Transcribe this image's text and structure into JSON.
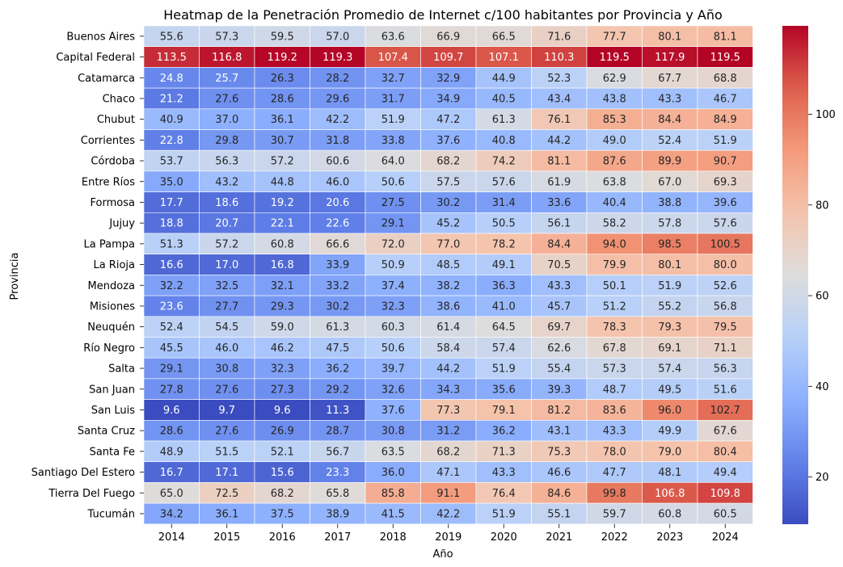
{
  "chart_data": {
    "type": "heatmap",
    "title": "Heatmap de la Penetración Promedio de Internet c/100 habitantes por Provincia y Año",
    "xlabel": "Año",
    "ylabel": "Provincia",
    "colormap": "coolwarm",
    "vmin": 9.6,
    "vmax": 119.5,
    "colorbar_ticks": [
      20,
      40,
      60,
      80,
      100
    ],
    "x": [
      "2014",
      "2015",
      "2016",
      "2017",
      "2018",
      "2019",
      "2020",
      "2021",
      "2022",
      "2023",
      "2024"
    ],
    "y": [
      "Buenos Aires",
      "Capital Federal",
      "Catamarca",
      "Chaco",
      "Chubut",
      "Corrientes",
      "Córdoba",
      "Entre Ríos",
      "Formosa",
      "Jujuy",
      "La Pampa",
      "La Rioja",
      "Mendoza",
      "Misiones",
      "Neuquén",
      "Río Negro",
      "Salta",
      "San Juan",
      "San Luis",
      "Santa Cruz",
      "Santa Fe",
      "Santiago Del Estero",
      "Tierra Del Fuego",
      "Tucumán"
    ],
    "values": [
      [
        55.6,
        57.3,
        59.5,
        57.0,
        63.6,
        66.9,
        66.5,
        71.6,
        77.7,
        80.1,
        81.1
      ],
      [
        113.5,
        116.8,
        119.2,
        119.3,
        107.4,
        109.7,
        107.1,
        110.3,
        119.5,
        117.9,
        119.5
      ],
      [
        24.8,
        25.7,
        26.3,
        28.2,
        32.7,
        32.9,
        44.9,
        52.3,
        62.9,
        67.7,
        68.8
      ],
      [
        21.2,
        27.6,
        28.6,
        29.6,
        31.7,
        34.9,
        40.5,
        43.4,
        43.8,
        43.3,
        46.7
      ],
      [
        40.9,
        37.0,
        36.1,
        42.2,
        51.9,
        47.2,
        61.3,
        76.1,
        85.3,
        84.4,
        84.9
      ],
      [
        22.8,
        29.8,
        30.7,
        31.8,
        33.8,
        37.6,
        40.8,
        44.2,
        49.0,
        52.4,
        51.9
      ],
      [
        53.7,
        56.3,
        57.2,
        60.6,
        64.0,
        68.2,
        74.2,
        81.1,
        87.6,
        89.9,
        90.7
      ],
      [
        35.0,
        43.2,
        44.8,
        46.0,
        50.6,
        57.5,
        57.6,
        61.9,
        63.8,
        67.0,
        69.3
      ],
      [
        17.7,
        18.6,
        19.2,
        20.6,
        27.5,
        30.2,
        31.4,
        33.6,
        40.4,
        38.8,
        39.6
      ],
      [
        18.8,
        20.7,
        22.1,
        22.6,
        29.1,
        45.2,
        50.5,
        56.1,
        58.2,
        57.8,
        57.6
      ],
      [
        51.3,
        57.2,
        60.8,
        66.6,
        72.0,
        77.0,
        78.2,
        84.4,
        94.0,
        98.5,
        100.5
      ],
      [
        16.6,
        17.0,
        16.8,
        33.9,
        50.9,
        48.5,
        49.1,
        70.5,
        79.9,
        80.1,
        80.0
      ],
      [
        32.2,
        32.5,
        32.1,
        33.2,
        37.4,
        38.2,
        36.3,
        43.3,
        50.1,
        51.9,
        52.6
      ],
      [
        23.6,
        27.7,
        29.3,
        30.2,
        32.3,
        38.6,
        41.0,
        45.7,
        51.2,
        55.2,
        56.8
      ],
      [
        52.4,
        54.5,
        59.0,
        61.3,
        60.3,
        61.4,
        64.5,
        69.7,
        78.3,
        79.3,
        79.5
      ],
      [
        45.5,
        46.0,
        46.2,
        47.5,
        50.6,
        58.4,
        57.4,
        62.6,
        67.8,
        69.1,
        71.1
      ],
      [
        29.1,
        30.8,
        32.3,
        36.2,
        39.7,
        44.2,
        51.9,
        55.4,
        57.3,
        57.4,
        56.3
      ],
      [
        27.8,
        27.6,
        27.3,
        29.2,
        32.6,
        34.3,
        35.6,
        39.3,
        48.7,
        49.5,
        51.6
      ],
      [
        9.6,
        9.7,
        9.6,
        11.3,
        37.6,
        77.3,
        79.1,
        81.2,
        83.6,
        96.0,
        102.7
      ],
      [
        28.6,
        27.6,
        26.9,
        28.7,
        30.8,
        31.2,
        36.2,
        43.1,
        43.3,
        49.9,
        67.6
      ],
      [
        48.9,
        51.5,
        52.1,
        56.7,
        63.5,
        68.2,
        71.3,
        75.3,
        78.0,
        79.0,
        80.4
      ],
      [
        16.7,
        17.1,
        15.6,
        23.3,
        36.0,
        47.1,
        43.3,
        46.6,
        47.7,
        48.1,
        49.4
      ],
      [
        65.0,
        72.5,
        68.2,
        65.8,
        85.8,
        91.1,
        76.4,
        84.6,
        99.8,
        106.8,
        109.8
      ],
      [
        34.2,
        36.1,
        37.5,
        38.9,
        41.5,
        42.2,
        51.9,
        55.1,
        59.7,
        60.8,
        60.5
      ]
    ]
  }
}
